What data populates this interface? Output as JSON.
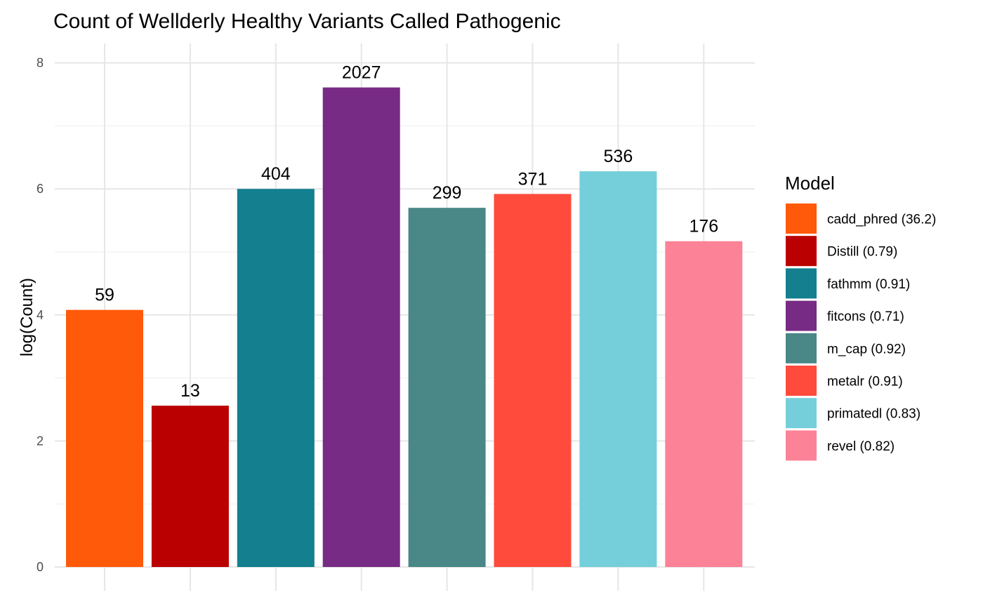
{
  "chart_data": {
    "type": "bar",
    "title": "Count of Wellderly Healthy Variants Called Pathogenic",
    "xlabel": "",
    "ylabel": "log(Count)",
    "ylim": [
      0,
      8.3
    ],
    "yticks": [
      0,
      2,
      4,
      6,
      8
    ],
    "grid": true,
    "legend_title": "Model",
    "legend_position": "right",
    "categories": [
      "cadd_phred (36.2)",
      "Distill (0.79)",
      "fathmm (0.91)",
      "fitcons (0.71)",
      "m_cap (0.92)",
      "metalr (0.91)",
      "primatedl (0.83)",
      "revel (0.82)"
    ],
    "values": [
      4.08,
      2.56,
      6.0,
      7.61,
      5.7,
      5.92,
      6.28,
      5.17
    ],
    "labels": [
      "59",
      "13",
      "404",
      "2027",
      "299",
      "371",
      "536",
      "176"
    ],
    "colors": [
      "#FF5A0A",
      "#BA0000",
      "#137F8F",
      "#772B84",
      "#4A8787",
      "#FE4B3C",
      "#75CFDA",
      "#FC8298"
    ]
  }
}
